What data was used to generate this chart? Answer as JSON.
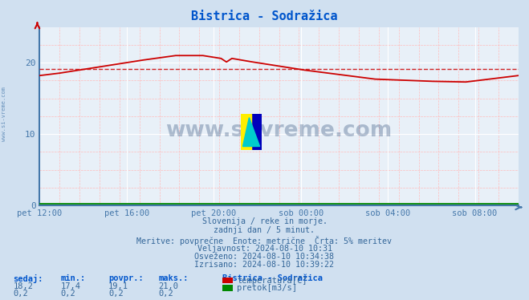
{
  "title": "Bistrica - Sodražica",
  "bg_color": "#d0e0f0",
  "plot_bg_color": "#e8f0f8",
  "grid_color_major": "#ffffff",
  "title_color": "#0055cc",
  "axis_label_color": "#4477aa",
  "text_color": "#336699",
  "line_color_temp": "#cc0000",
  "line_color_flow": "#008800",
  "avg_line_color": "#cc0000",
  "x_tick_labels": [
    "pet 12:00",
    "pet 16:00",
    "pet 20:00",
    "sob 00:00",
    "sob 04:00",
    "sob 08:00"
  ],
  "x_tick_positions": [
    0,
    48,
    96,
    144,
    192,
    240
  ],
  "x_max": 264,
  "y_min": 0,
  "y_max": 25,
  "y_ticks": [
    0,
    10,
    20
  ],
  "avg_temp": 19.1,
  "info_lines": [
    "Slovenija / reke in morje.",
    "zadnji dan / 5 minut.",
    "Meritve: povprečne  Enote: metrične  Črta: 5% meritev",
    "Veljavnost: 2024-08-10 10:31",
    "Osveženo: 2024-08-10 10:34:38",
    "Izrisano: 2024-08-10 10:39:22"
  ],
  "table_headers": [
    "sedaj:",
    "min.:",
    "povpr.:",
    "maks.:"
  ],
  "table_temp": [
    "18,2",
    "17,4",
    "19,1",
    "21,0"
  ],
  "table_flow": [
    "0,2",
    "0,2",
    "0,2",
    "0,2"
  ],
  "legend_title": "Bistrica - Sodražica",
  "legend_items": [
    "temperatura[C]",
    "pretok[m3/s]"
  ],
  "legend_colors": [
    "#cc0000",
    "#008800"
  ],
  "watermark": "www.si-vreme.com",
  "watermark_color": "#1a3a6a"
}
